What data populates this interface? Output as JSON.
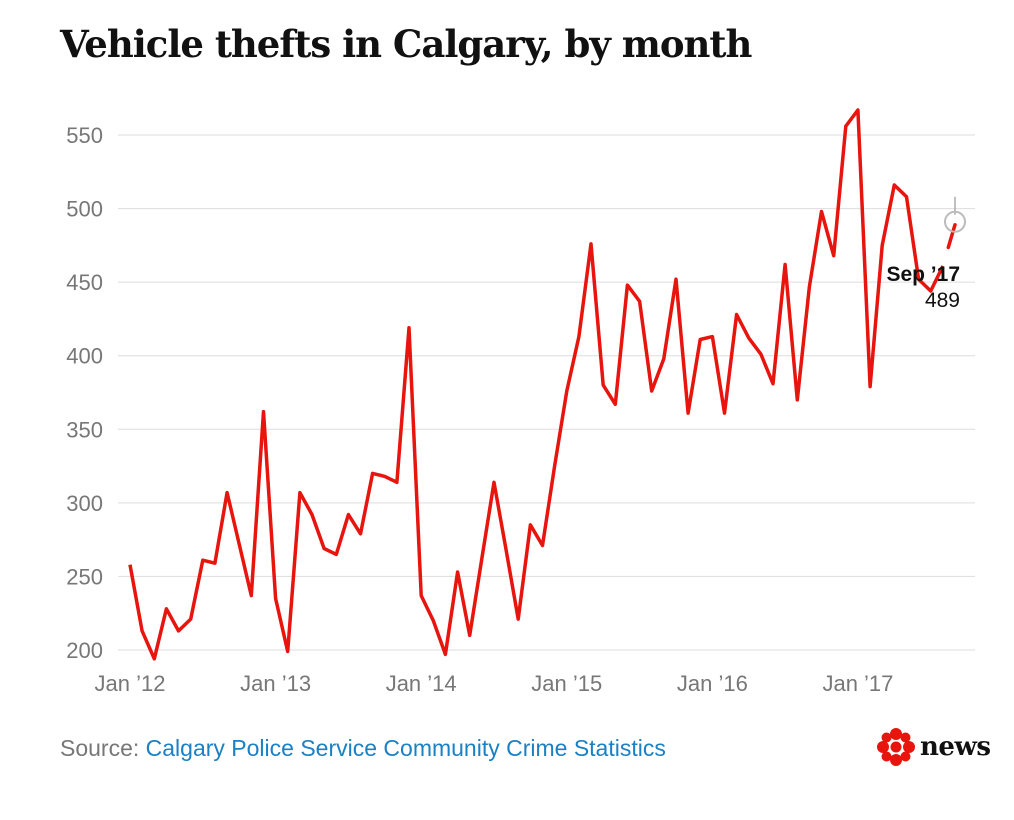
{
  "title": "Vehicle thefts in Calgary, by month",
  "footer": {
    "source_label": "Source:",
    "source_link": "Calgary Police Service Community Crime Statistics"
  },
  "logo": {
    "text": "news",
    "icon": "cbc-gem-icon"
  },
  "colors": {
    "line": "#e8140e",
    "grid": "#dddddd",
    "tick": "#777777",
    "link": "#1b80c4"
  },
  "chart_data": {
    "type": "line",
    "title": "Vehicle thefts in Calgary, by month",
    "xlabel": "",
    "ylabel": "",
    "ylim": [
      195,
      575
    ],
    "yticks": [
      200,
      250,
      300,
      350,
      400,
      450,
      500,
      550
    ],
    "xtick_labels": [
      "Jan ’12",
      "Jan ’13",
      "Jan ’14",
      "Jan ’15",
      "Jan ’16",
      "Jan ’17"
    ],
    "xtick_index": [
      0,
      12,
      24,
      36,
      48,
      60
    ],
    "grid": true,
    "series": [
      {
        "start": "2012-01",
        "end": "2017-09",
        "values": [
          258,
          213,
          194,
          228,
          213,
          221,
          261,
          259,
          307,
          272,
          237,
          362,
          235,
          199,
          307,
          292,
          269,
          265,
          292,
          279,
          320,
          318,
          314,
          419,
          237,
          220,
          197,
          253,
          210,
          262,
          314,
          268,
          221,
          285,
          271,
          325,
          376,
          413,
          476,
          380,
          367,
          448,
          437,
          376,
          398,
          452,
          361,
          411,
          413,
          361,
          428,
          412,
          401,
          381,
          462,
          370,
          447,
          498,
          468,
          556,
          567,
          379,
          475,
          516,
          508,
          452,
          444,
          461,
          489
        ]
      }
    ],
    "annotation": {
      "label": "Sep ’17",
      "value": "489"
    }
  }
}
